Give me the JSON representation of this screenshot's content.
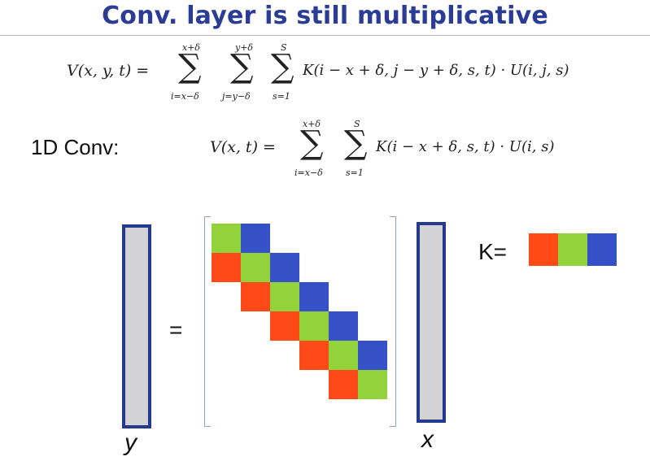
{
  "title": "Conv. layer is still multiplicative",
  "eq2d": {
    "lhs": "V(x, y, t) =",
    "sum1_top": "x+δ",
    "sum1_bot": "i=x−δ",
    "sum2_top": "y+δ",
    "sum2_bot": "j=y−δ",
    "sum3_top": "S",
    "sum3_bot": "s=1",
    "rhs": "K(i − x + δ, j − y + δ, s, t) · U(i, j, s)"
  },
  "conv1d_label": "1D Conv:",
  "eq1d": {
    "lhs": "V(x, t) =",
    "sum1_top": "x+δ",
    "sum1_bot": "i=x−δ",
    "sum2_top": "S",
    "sum2_bot": "s=1",
    "rhs": "K(i − x + δ, s, t) · U(i, s)"
  },
  "diagram": {
    "y_label": "y",
    "x_label": "x",
    "equals": "=",
    "k_label": "K=",
    "colors": {
      "red": "#ff4a18",
      "green": "#92d23a",
      "blue": "#3650c8",
      "vector_fill": "#d3d3d6",
      "vector_border": "#243a8f"
    },
    "kernel": [
      "red",
      "green",
      "blue"
    ],
    "matrix_rows": [
      [
        "green",
        "blue"
      ],
      [
        "red",
        "green",
        "blue"
      ],
      [
        "red",
        "green",
        "blue"
      ],
      [
        "red",
        "green",
        "blue"
      ],
      [
        "red",
        "green",
        "blue"
      ],
      [
        "red",
        "green"
      ]
    ]
  }
}
